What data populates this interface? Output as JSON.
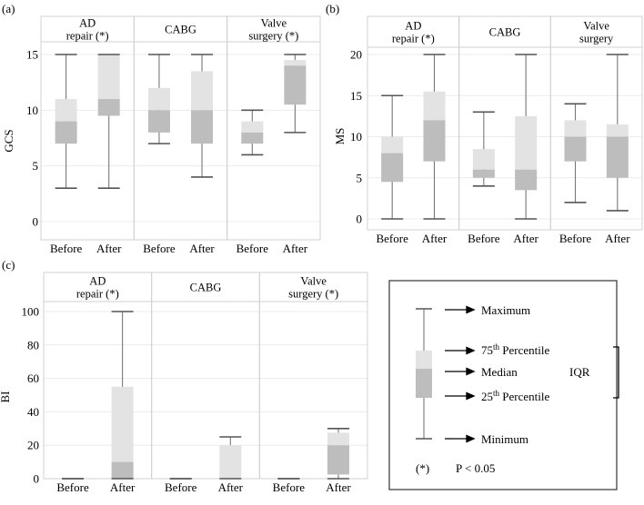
{
  "chart_data": [
    {
      "panel": "(a)",
      "type": "box",
      "ylabel": "GCS",
      "ylim": [
        -1,
        16
      ],
      "yticks": [
        0,
        5,
        10,
        15
      ],
      "groups": [
        {
          "label": "AD repair (*)",
          "label_lines": [
            "AD",
            "repair (*)"
          ]
        },
        {
          "label": "CABG",
          "label_lines": [
            "CABG"
          ]
        },
        {
          "label": "Valve surgery (*)",
          "label_lines": [
            "Valve",
            "surgery (*)"
          ]
        }
      ],
      "categories": [
        "Before",
        "After"
      ],
      "boxes": [
        {
          "group": 0,
          "cat": "Before",
          "min": 3,
          "q1": 7,
          "median": 9,
          "q3": 11,
          "max": 15
        },
        {
          "group": 0,
          "cat": "After",
          "min": 3,
          "q1": 9.5,
          "median": 11,
          "q3": 15,
          "max": 15
        },
        {
          "group": 1,
          "cat": "Before",
          "min": 7,
          "q1": 8,
          "median": 10,
          "q3": 12,
          "max": 15
        },
        {
          "group": 1,
          "cat": "After",
          "min": 4,
          "q1": 7,
          "median": 10,
          "q3": 13.5,
          "max": 15
        },
        {
          "group": 2,
          "cat": "Before",
          "min": 6,
          "q1": 7,
          "median": 8,
          "q3": 9,
          "max": 10
        },
        {
          "group": 2,
          "cat": "After",
          "min": 8,
          "q1": 10.5,
          "median": 14,
          "q3": 14.5,
          "max": 15
        }
      ]
    },
    {
      "panel": "(b)",
      "type": "box",
      "ylabel": "MS",
      "ylim": [
        -1,
        21
      ],
      "yticks": [
        0,
        5,
        10,
        15,
        20
      ],
      "groups": [
        {
          "label": "AD repair (*)",
          "label_lines": [
            "AD",
            "repair (*)"
          ]
        },
        {
          "label": "CABG",
          "label_lines": [
            "CABG"
          ]
        },
        {
          "label": "Valve surgery",
          "label_lines": [
            "Valve",
            "surgery"
          ]
        }
      ],
      "categories": [
        "Before",
        "After"
      ],
      "boxes": [
        {
          "group": 0,
          "cat": "Before",
          "min": 0,
          "q1": 4.5,
          "median": 8,
          "q3": 10,
          "max": 15
        },
        {
          "group": 0,
          "cat": "After",
          "min": 0,
          "q1": 7,
          "median": 12,
          "q3": 15.5,
          "max": 20
        },
        {
          "group": 1,
          "cat": "Before",
          "min": 4,
          "q1": 5,
          "median": 6,
          "q3": 8.5,
          "max": 13
        },
        {
          "group": 1,
          "cat": "After",
          "min": 0,
          "q1": 3.5,
          "median": 6,
          "q3": 12.5,
          "max": 20
        },
        {
          "group": 2,
          "cat": "Before",
          "min": 2,
          "q1": 7,
          "median": 10,
          "q3": 12,
          "max": 14
        },
        {
          "group": 2,
          "cat": "After",
          "min": 1,
          "q1": 5,
          "median": 10,
          "q3": 11.5,
          "max": 20
        }
      ]
    },
    {
      "panel": "(c)",
      "type": "box",
      "ylabel": "BI",
      "ylim": [
        -3,
        105
      ],
      "yticks": [
        0,
        20,
        40,
        60,
        80,
        100
      ],
      "groups": [
        {
          "label": "AD repair (*)",
          "label_lines": [
            "AD",
            "repair (*)"
          ]
        },
        {
          "label": "CABG",
          "label_lines": [
            "CABG"
          ]
        },
        {
          "label": "Valve surgery (*)",
          "label_lines": [
            "Valve",
            "surgery (*)"
          ]
        }
      ],
      "categories": [
        "Before",
        "After"
      ],
      "boxes": [
        {
          "group": 0,
          "cat": "Before",
          "min": 0,
          "q1": 0,
          "median": 0,
          "q3": 0,
          "max": 0
        },
        {
          "group": 0,
          "cat": "After",
          "min": 0,
          "q1": 0,
          "median": 10,
          "q3": 55,
          "max": 100
        },
        {
          "group": 1,
          "cat": "Before",
          "min": 0,
          "q1": 0,
          "median": 0,
          "q3": 0,
          "max": 0
        },
        {
          "group": 1,
          "cat": "After",
          "min": 0,
          "q1": 0,
          "median": 0,
          "q3": 20,
          "max": 25
        },
        {
          "group": 2,
          "cat": "Before",
          "min": 0,
          "q1": 0,
          "median": 0,
          "q3": 0,
          "max": 0
        },
        {
          "group": 2,
          "cat": "After",
          "min": 0,
          "q1": 2.5,
          "median": 20,
          "q3": 27.5,
          "max": 30
        }
      ]
    }
  ],
  "legend": {
    "maximum": "Maximum",
    "p75_base": "75",
    "p75_sup": "th",
    "p75_rest": " Percentile",
    "median": "Median",
    "p25_base": "25",
    "p25_sup": "th",
    "p25_rest": " Percentile",
    "minimum": "Minimum",
    "iqr": "IQR",
    "sig_marker": "(*)",
    "sig_text": "P < 0.05"
  }
}
